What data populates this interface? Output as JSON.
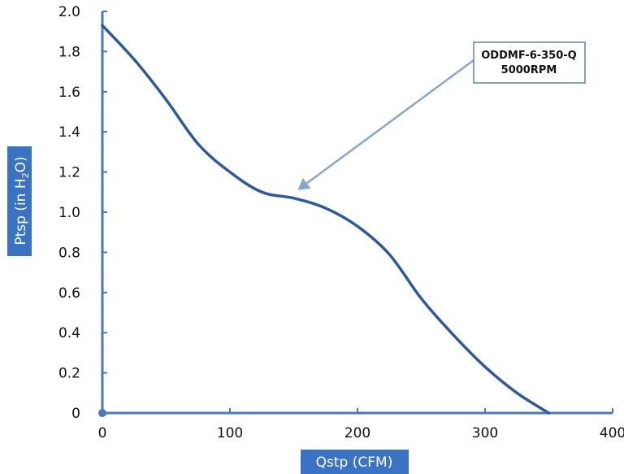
{
  "colors": {
    "axis": "#4a78b8",
    "curve": "#2d5a9a",
    "label_bg": "#3b73c4",
    "callout_border": "#5b82b5",
    "arrow": "#86a6cc"
  },
  "chart_data": {
    "type": "line",
    "xlabel": "Qstp (CFM)",
    "ylabel_main": "Ptsp (in H",
    "ylabel_sub": "2",
    "ylabel_end": "O)",
    "xlim": [
      0,
      400
    ],
    "ylim": [
      0,
      2.0
    ],
    "x_ticks": [
      "0",
      "100",
      "200",
      "300",
      "400"
    ],
    "y_ticks": [
      "0",
      "0.2",
      "0.4",
      "0.6",
      "0.8",
      "1.0",
      "1.2",
      "1.4",
      "1.6",
      "1.8",
      "2.0"
    ],
    "grid": false,
    "series": [
      {
        "x": [
          0,
          25,
          50,
          75,
          100,
          125,
          150,
          175,
          200,
          225,
          250,
          275,
          300,
          325,
          350
        ],
        "y": [
          1.93,
          1.76,
          1.56,
          1.34,
          1.2,
          1.1,
          1.07,
          1.02,
          0.93,
          0.79,
          0.57,
          0.39,
          0.23,
          0.1,
          0.0
        ]
      }
    ],
    "annotation": {
      "line1": "ODDMF-6-350-Q",
      "line2": "5000RPM",
      "points_to": {
        "x": 155,
        "y": 1.07
      }
    }
  }
}
